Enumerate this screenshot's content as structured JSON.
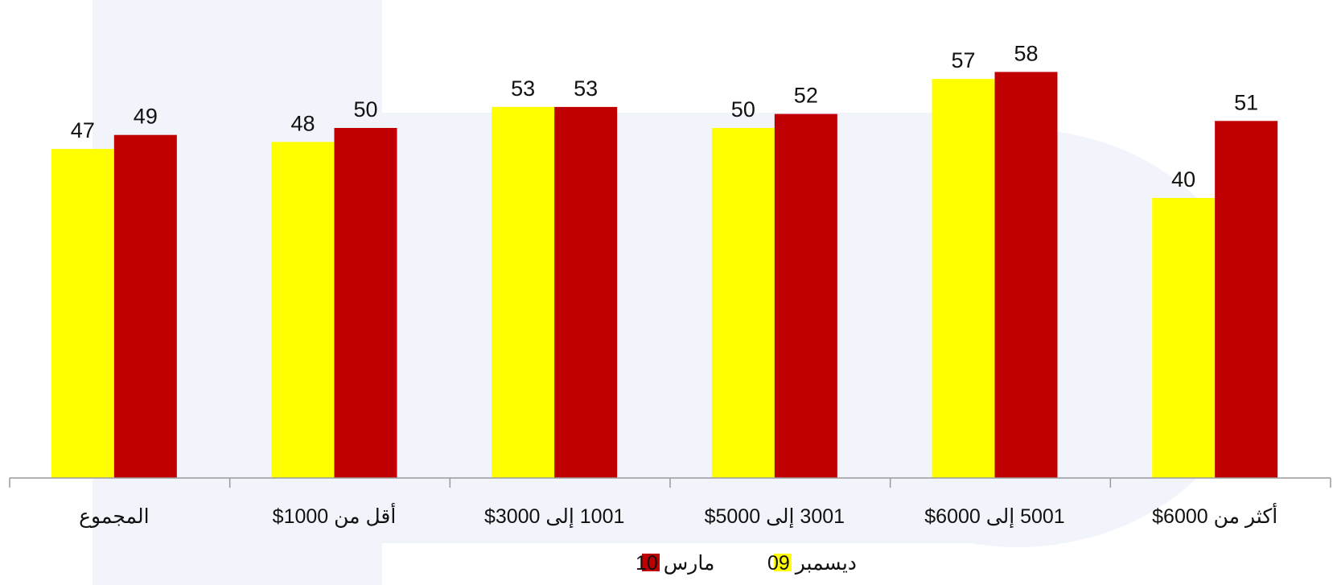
{
  "chart_data": {
    "type": "bar",
    "title": "",
    "xlabel": "",
    "ylabel": "",
    "ylim": [
      0,
      70
    ],
    "grid": false,
    "legend_position": "bottom",
    "categories": [
      "المجموع",
      "أقل من 1000$",
      "1001 إلى 3000$",
      "3001 إلى 5000$",
      "5001 إلى 6000$",
      "أكثر من 6000$"
    ],
    "series": [
      {
        "name": "ديسمبر 09",
        "color": "#ffff00",
        "values": [
          47,
          48,
          53,
          50,
          57,
          40
        ]
      },
      {
        "name": "مارس 10",
        "color": "#c00000",
        "values": [
          49,
          50,
          53,
          52,
          58,
          51
        ]
      }
    ]
  }
}
